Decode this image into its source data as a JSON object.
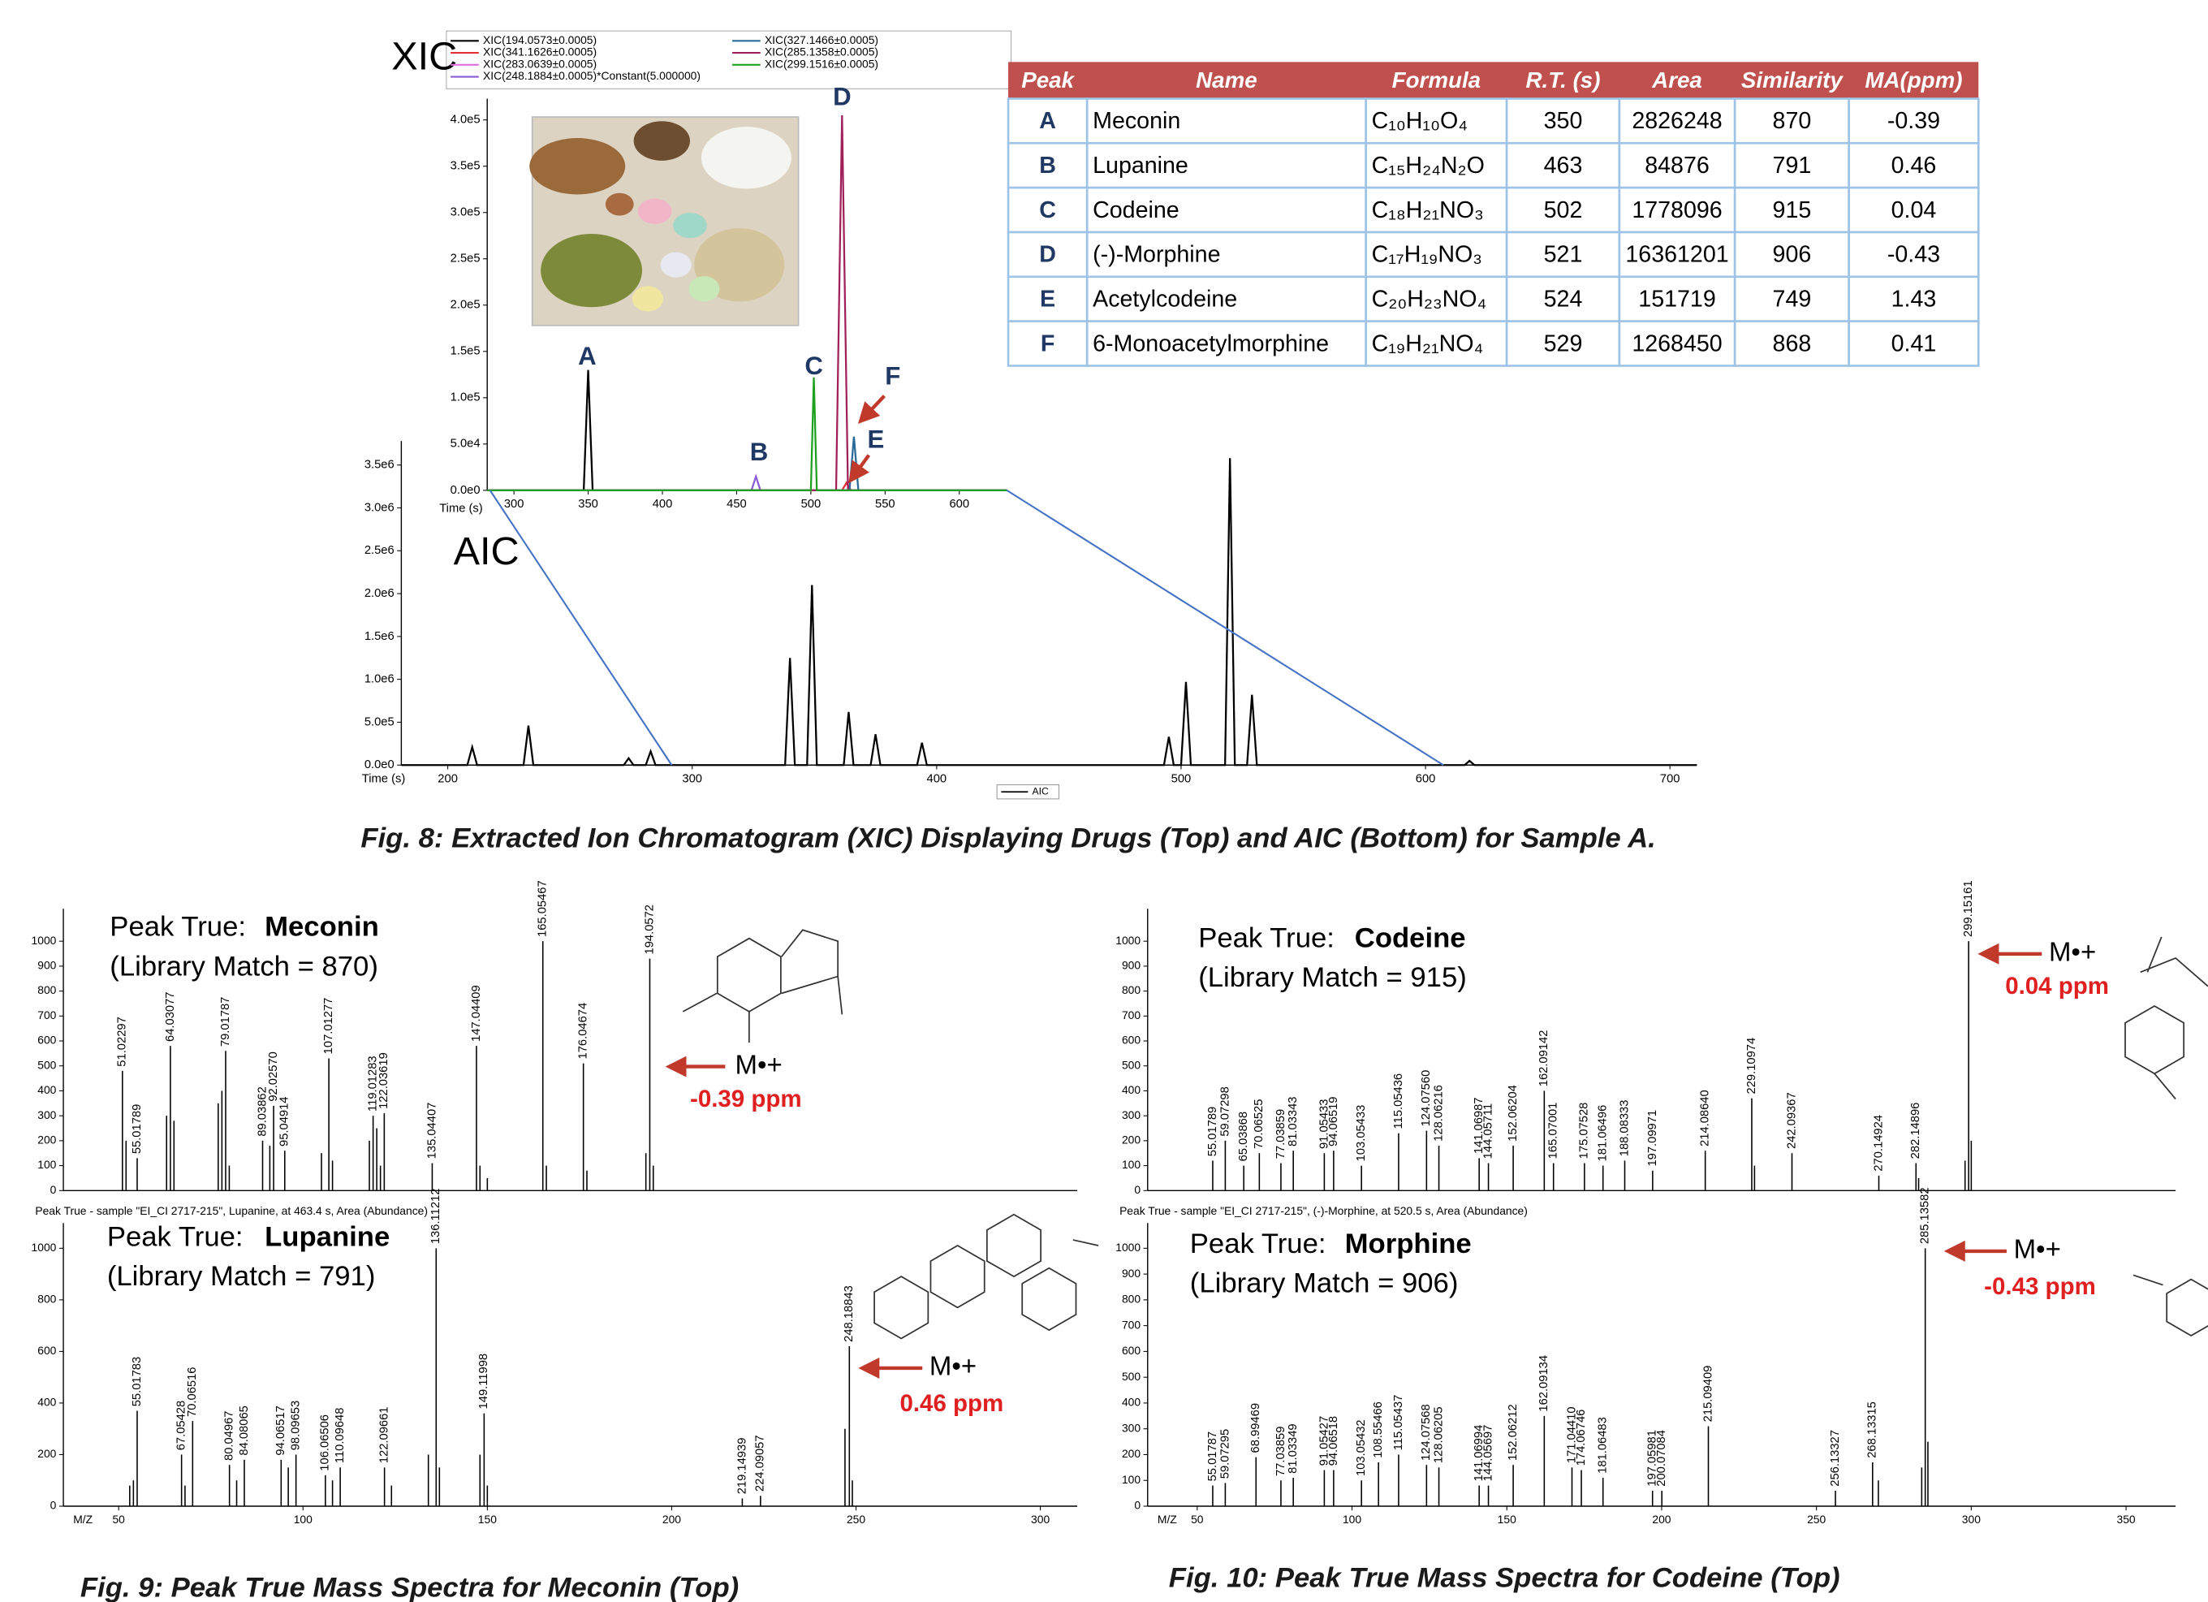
{
  "chart_data": [
    {
      "type": "line",
      "title": "XIC",
      "x_label": "Time (s)",
      "legend": "top",
      "xlim": [
        282,
        632
      ],
      "xticks": [
        300,
        350,
        400,
        450,
        500,
        550,
        600
      ],
      "ylim": [
        0,
        423000
      ],
      "yticks": [
        {
          "value": 0,
          "label": "0.0e0"
        },
        {
          "value": 50000,
          "label": "5.0e4"
        },
        {
          "value": 100000,
          "label": "1.0e5"
        },
        {
          "value": 150000,
          "label": "1.5e5"
        },
        {
          "value": 200000,
          "label": "2.0e5"
        },
        {
          "value": 250000,
          "label": "2.5e5"
        },
        {
          "value": 300000,
          "label": "3.0e5"
        },
        {
          "value": 350000,
          "label": "3.5e5"
        },
        {
          "value": 400000,
          "label": "4.0e5"
        }
      ],
      "peak_labels": [
        "A",
        "B",
        "C",
        "D",
        "E",
        "F"
      ],
      "series": [
        {
          "name": "XIC(194.0573±0.0005)",
          "color": "#000000",
          "x": [
            282,
            347,
            350,
            353,
            632
          ],
          "values": [
            0,
            0,
            130000,
            0,
            0
          ]
        },
        {
          "name": "XIC(341.1626±0.0005)",
          "color": "#e03030",
          "x": [
            282,
            521,
            524,
            527,
            632
          ],
          "values": [
            0,
            0,
            8000,
            0,
            0
          ]
        },
        {
          "name": "XIC(283.0639±0.0005)",
          "color": "#e070e0",
          "x": [
            282,
            632
          ],
          "values": [
            0,
            0
          ]
        },
        {
          "name": "XIC(248.1884±0.0005)*Constant(5.000000)",
          "color": "#8a5cd6",
          "x": [
            282,
            460,
            463,
            466,
            632
          ],
          "values": [
            0,
            0,
            15000,
            0,
            0
          ]
        },
        {
          "name": "XIC(327.1466±0.0005)",
          "color": "#2a6a9a",
          "x": [
            282,
            526,
            529,
            532,
            632
          ],
          "values": [
            0,
            0,
            58000,
            0,
            0
          ]
        },
        {
          "name": "XIC(285.1358±0.0005)",
          "color": "#a0205a",
          "x": [
            282,
            517,
            521,
            525,
            632
          ],
          "values": [
            0,
            0,
            405000,
            0,
            0
          ]
        },
        {
          "name": "XIC(299.1516±0.0005)",
          "color": "#20a020",
          "x": [
            282,
            500,
            502,
            504,
            632
          ],
          "values": [
            0,
            0,
            122000,
            0,
            0
          ]
        }
      ]
    },
    {
      "type": "line",
      "title": "AIC",
      "x_label": "Time (s)",
      "legend": "bottom",
      "xlim": [
        181,
        711
      ],
      "xticks": [
        200,
        300,
        400,
        500,
        600,
        700
      ],
      "ylim": [
        0,
        3780000
      ],
      "yticks": [
        {
          "value": 0,
          "label": "0.0e0"
        },
        {
          "value": 500000,
          "label": "5.0e5"
        },
        {
          "value": 1000000,
          "label": "1.0e6"
        },
        {
          "value": 1500000,
          "label": "1.5e6"
        },
        {
          "value": 2000000,
          "label": "2.0e6"
        },
        {
          "value": 2500000,
          "label": "2.5e6"
        },
        {
          "value": 3000000,
          "label": "3.0e6"
        },
        {
          "value": 3500000,
          "label": "3.5e6"
        }
      ],
      "series": [
        {
          "name": "AIC",
          "color": "#000000",
          "x": [
            181,
            208,
            210,
            212,
            231,
            233,
            235,
            272,
            274,
            276,
            281,
            283,
            285,
            338,
            340,
            342,
            347,
            349,
            351,
            362,
            364,
            366,
            373,
            375,
            377,
            392,
            394,
            396,
            493,
            495,
            497,
            500,
            502,
            504,
            518,
            520,
            522,
            527,
            529,
            531,
            616,
            618,
            620,
            711
          ],
          "values": [
            0,
            0,
            210000,
            0,
            0,
            460000,
            0,
            0,
            80000,
            0,
            0,
            160000,
            0,
            0,
            1250000,
            0,
            0,
            2100000,
            0,
            0,
            620000,
            0,
            0,
            360000,
            0,
            0,
            260000,
            0,
            0,
            330000,
            0,
            0,
            970000,
            0,
            0,
            3580000,
            0,
            0,
            820000,
            0,
            0,
            50000,
            0,
            0
          ]
        }
      ]
    },
    {
      "type": "stick",
      "xlim": [
        35,
        310
      ],
      "ylim": [
        0,
        1130
      ],
      "yticks": [
        0,
        100,
        200,
        300,
        400,
        500,
        600,
        700,
        800,
        900,
        1000
      ],
      "x": [
        51.02297,
        52,
        55.01789,
        63,
        64.03077,
        65,
        77,
        78,
        79.01787,
        80,
        89.03862,
        91,
        92.0257,
        95.04914,
        105,
        107.01277,
        108,
        118,
        119.01283,
        120,
        121,
        122.03619,
        135.04407,
        147.04409,
        148,
        150,
        165.05467,
        166,
        176.04674,
        177,
        193,
        194.0572,
        195
      ],
      "values": [
        480,
        200,
        130,
        300,
        580,
        280,
        350,
        400,
        560,
        100,
        200,
        180,
        340,
        160,
        150,
        530,
        120,
        200,
        300,
        250,
        100,
        310,
        110,
        580,
        100,
        50,
        1000,
        100,
        510,
        80,
        150,
        930,
        100
      ],
      "x_labels": [
        "51.02297",
        null,
        "55.01789",
        null,
        "64.03077",
        null,
        null,
        null,
        "79.01787",
        null,
        "89.03862",
        null,
        "92.02570",
        "95.04914",
        null,
        "107.01277",
        null,
        null,
        "119.01283",
        null,
        null,
        "122.03619",
        "135.04407",
        "147.04409",
        null,
        null,
        "165.05467",
        null,
        "176.04674",
        null,
        null,
        "194.0572",
        null
      ],
      "annotations": {
        "peak_true": "Peak True:",
        "compound": "Meconin",
        "library_match": "(Library Match = 870)",
        "ion": "M•+",
        "ppm": "-0.39 ppm"
      }
    },
    {
      "type": "stick",
      "header": "Peak True - sample \"EI_CI 2717-215\", Lupanine, at 463.4 s, Area (Abundance)",
      "x_label": "M/Z",
      "xlim": [
        35,
        310
      ],
      "xticks": [
        50,
        100,
        150,
        200,
        250,
        300
      ],
      "ylim": [
        0,
        1098
      ],
      "yticks": [
        0,
        200,
        400,
        600,
        800,
        1000
      ],
      "x": [
        53,
        54,
        55.01783,
        67.05428,
        68,
        70.06516,
        80.04967,
        82,
        84.08065,
        94.06517,
        96,
        98.09653,
        106.06506,
        108,
        110.09648,
        122.09661,
        124,
        134,
        136.11212,
        137,
        148,
        149.11998,
        150,
        219.14939,
        224.09057,
        247,
        248.18843,
        249
      ],
      "values": [
        80,
        100,
        370,
        200,
        80,
        330,
        160,
        100,
        180,
        180,
        150,
        200,
        120,
        100,
        150,
        150,
        80,
        200,
        1000,
        150,
        200,
        360,
        80,
        30,
        40,
        300,
        620,
        100
      ],
      "x_labels": [
        null,
        null,
        "55.01783",
        "67.05428",
        null,
        "70.06516",
        "80.04967",
        null,
        "84.08065",
        "94.06517",
        null,
        "98.09653",
        "106.06506",
        null,
        "110.09648",
        "122.09661",
        null,
        null,
        "136.11212",
        null,
        null,
        "149.11998",
        null,
        "219.14939",
        "224.09057",
        null,
        "248.18843",
        null
      ],
      "annotations": {
        "peak_true": "Peak True:",
        "compound": "Lupanine",
        "library_match": "(Library Match = 791)",
        "ion": "M•+",
        "ppm": "0.46 ppm"
      }
    },
    {
      "type": "stick",
      "xlim": [
        34,
        366
      ],
      "ylim": [
        0,
        1130
      ],
      "yticks": [
        0,
        100,
        200,
        300,
        400,
        500,
        600,
        700,
        800,
        900,
        1000
      ],
      "x": [
        55.01789,
        59.07298,
        65.03868,
        70.06525,
        77.03859,
        81.03343,
        91.05433,
        94.06519,
        103.05433,
        115.05436,
        124.0756,
        128.06216,
        141.06987,
        144.05711,
        152.06204,
        162.09142,
        165.07001,
        175.07528,
        181.06496,
        188.08333,
        197.09971,
        214.0864,
        229.10974,
        230,
        242.09367,
        270.14924,
        282.14896,
        283,
        298,
        299.15161,
        300
      ],
      "values": [
        120,
        200,
        100,
        150,
        110,
        160,
        150,
        160,
        100,
        230,
        240,
        180,
        130,
        110,
        180,
        400,
        110,
        110,
        100,
        120,
        80,
        160,
        370,
        100,
        150,
        60,
        110,
        50,
        120,
        1000,
        200
      ],
      "x_labels": [
        "55.01789",
        "59.07298",
        "65.03868",
        "70.06525",
        "77.03859",
        "81.03343",
        "91.05433",
        "94.06519",
        "103.05433",
        "115.05436",
        "124.07560",
        "128.06216",
        "141.06987",
        "144.05711",
        "152.06204",
        "162.09142",
        "165.07001",
        "175.07528",
        "181.06496",
        "188.08333",
        "197.09971",
        "214.08640",
        "229.10974",
        null,
        "242.09367",
        "270.14924",
        "282.14896",
        null,
        null,
        "299.15161",
        null
      ],
      "annotations": {
        "peak_true": "Peak True:",
        "compound": "Codeine",
        "library_match": "(Library Match = 915)",
        "ion": "M•+",
        "ppm": "0.04 ppm"
      }
    },
    {
      "type": "stick",
      "header": "Peak True - sample \"EI_CI 2717-215\", (-)-Morphine, at 520.5 s, Area (Abundance)",
      "x_label": "M/Z",
      "xlim": [
        34,
        366
      ],
      "xticks": [
        50,
        100,
        150,
        200,
        250,
        300,
        350
      ],
      "ylim": [
        0,
        1098
      ],
      "yticks": [
        0,
        100,
        200,
        300,
        400,
        500,
        600,
        700,
        800,
        900,
        1000
      ],
      "x": [
        55.01787,
        59.07295,
        68.99469,
        77.03859,
        81.03349,
        91.05427,
        94.06518,
        103.05432,
        108.55466,
        115.05437,
        124.07568,
        128.06205,
        141.06994,
        144.05697,
        152.06212,
        162.09134,
        171.0441,
        174.06746,
        181.06483,
        197.05981,
        200.07084,
        215.09409,
        256.13327,
        268.13315,
        270,
        284,
        285.13582,
        286
      ],
      "values": [
        80,
        90,
        190,
        100,
        110,
        140,
        140,
        100,
        170,
        200,
        160,
        150,
        80,
        80,
        160,
        350,
        150,
        140,
        110,
        60,
        60,
        310,
        60,
        170,
        100,
        150,
        1000,
        250
      ],
      "x_labels": [
        "55.01787",
        "59.07295",
        "68.99469",
        "77.03859",
        "81.03349",
        "91.05427",
        "94.06518",
        "103.05432",
        "108.55466",
        "115.05437",
        "124.07568",
        "128.06205",
        "141.06994",
        "144.05697",
        "152.06212",
        "162.09134",
        "171.04410",
        "174.06746",
        "181.06483",
        "197.05981",
        "200.07084",
        "215.09409",
        "256.13327",
        "268.13315",
        null,
        null,
        "285.13582",
        null
      ],
      "annotations": {
        "peak_true": "Peak True:",
        "compound": "Morphine",
        "library_match": "(Library Match = 906)",
        "ion": "M•+",
        "ppm": "-0.43 ppm"
      }
    }
  ],
  "table": {
    "columns": [
      "Peak",
      "Name",
      "Formula",
      "R.T. (s)",
      "Area",
      "Similarity",
      "MA(ppm)"
    ],
    "rows": [
      [
        "A",
        "Meconin",
        "C₁₀H₁₀O₄",
        350,
        2826248,
        870,
        -0.39
      ],
      [
        "B",
        "Lupanine",
        "C₁₅H₂₄N₂O",
        463,
        84876,
        791,
        0.46
      ],
      [
        "C",
        "Codeine",
        "C₁₈H₂₁NO₃",
        502,
        1778096,
        915,
        0.04
      ],
      [
        "D",
        "(-)-Morphine",
        "C₁₇H₁₉NO₃",
        521,
        16361201,
        906,
        -0.43
      ],
      [
        "E",
        "Acetylcodeine",
        "C₂₀H₂₃NO₄",
        524,
        151719,
        749,
        1.43
      ],
      [
        "F",
        "6-Monoacetylmorphine",
        "C₁₉H₂₁NO₄",
        529,
        1268450,
        868,
        0.41
      ]
    ]
  },
  "captions": [
    "Fig. 8: Extracted Ion Chromatogram (XIC) Displaying Drugs (Top) and AIC (Bottom) for Sample A.",
    "Fig. 9: Peak True Mass Spectra for Meconin (Top)",
    "Fig. 10: Peak True Mass Spectra for Codeine (Top)"
  ]
}
